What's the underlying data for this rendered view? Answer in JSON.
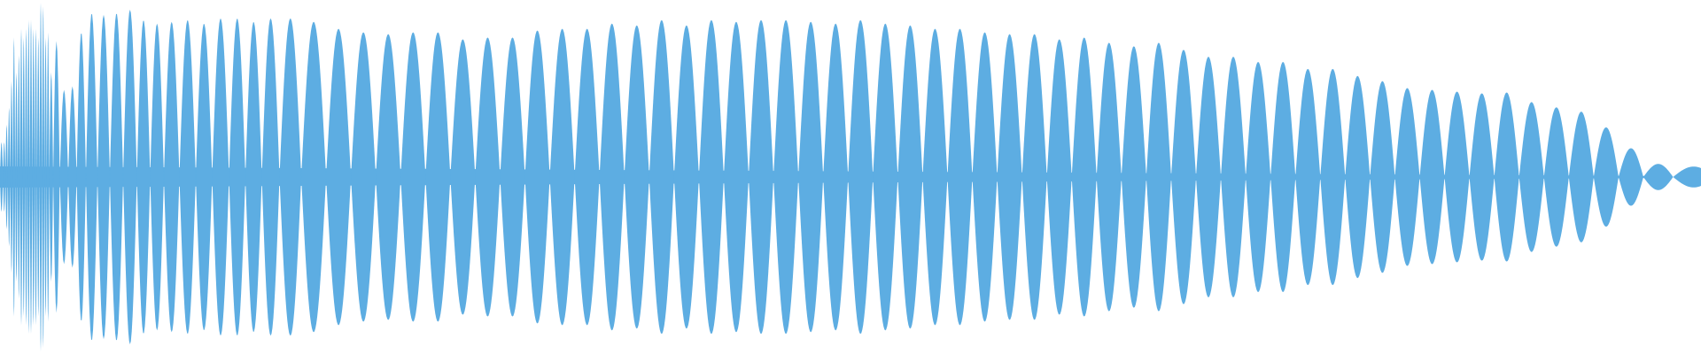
{
  "chart_data": {
    "type": "area",
    "title": "",
    "xlabel": "",
    "ylabel": "",
    "ylim": [
      -1,
      1
    ],
    "grid": false,
    "legend": "none",
    "color": "#5DADE2",
    "background": "#FFFFFF",
    "symmetric": true,
    "lobe_peak_amplitudes": [
      0.2,
      0.2,
      0.3,
      0.4,
      0.55,
      0.8,
      0.6,
      0.7,
      0.85,
      0.8,
      0.85,
      0.9,
      0.9,
      0.85,
      0.85,
      0.8,
      1.0,
      0.98,
      0.8,
      0.83,
      0.6,
      0.78,
      0.5,
      0.52,
      0.83,
      0.94,
      0.93,
      0.94,
      0.96,
      0.9,
      0.88,
      0.89,
      0.9,
      0.88,
      0.91,
      0.91,
      0.89,
      0.91,
      0.91,
      0.89,
      0.85,
      0.83,
      0.82,
      0.83,
      0.83,
      0.79,
      0.8,
      0.8,
      0.84,
      0.85,
      0.85,
      0.88,
      0.87,
      0.9,
      0.87,
      0.9,
      0.89,
      0.9,
      0.9,
      0.89,
      0.88,
      0.9,
      0.88,
      0.87,
      0.85,
      0.85,
      0.83,
      0.82,
      0.82,
      0.79,
      0.8,
      0.77,
      0.75,
      0.77,
      0.73,
      0.69,
      0.69,
      0.66,
      0.66,
      0.62,
      0.62,
      0.58,
      0.55,
      0.51,
      0.5,
      0.49,
      0.48,
      0.485,
      0.43,
      0.4,
      0.375,
      0.285,
      0.165,
      0.075,
      0.06
    ]
  }
}
